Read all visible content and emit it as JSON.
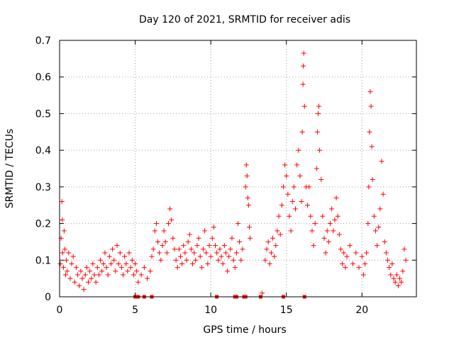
{
  "chart_data": {
    "type": "scatter",
    "title": "Day 120 of 2021, SRMTID for receiver adis",
    "xlabel": "GPS time / hours",
    "ylabel": "SRMTID / TECUs",
    "xlim": [
      0,
      23.6
    ],
    "ylim": [
      0,
      0.7
    ],
    "xticks": [
      0,
      5,
      10,
      15,
      20
    ],
    "xtick_labels": [
      "0",
      "5",
      "10",
      "15",
      "20"
    ],
    "yticks": [
      0,
      0.1,
      0.2,
      0.3,
      0.4,
      0.5,
      0.6,
      0.7
    ],
    "ytick_labels": [
      "0",
      "0.1",
      "0.2",
      "0.3",
      "0.4",
      "0.5",
      "0.6",
      "0.7"
    ],
    "grid": true,
    "marker": "+",
    "color": "#ff0000",
    "series": [
      {
        "name": "SRMTID",
        "points": [
          [
            0.05,
            0.09
          ],
          [
            0.1,
            0.16
          ],
          [
            0.15,
            0.26
          ],
          [
            0.18,
            0.21
          ],
          [
            0.2,
            0.12
          ],
          [
            0.25,
            0.08
          ],
          [
            0.3,
            0.18
          ],
          [
            0.35,
            0.13
          ],
          [
            0.4,
            0.06
          ],
          [
            0.45,
            0.1
          ],
          [
            0.5,
            0.07
          ],
          [
            0.6,
            0.12
          ],
          [
            0.7,
            0.05
          ],
          [
            0.8,
            0.09
          ],
          [
            0.9,
            0.11
          ],
          [
            1.0,
            0.04
          ],
          [
            1.1,
            0.08
          ],
          [
            1.2,
            0.06
          ],
          [
            1.3,
            0.03
          ],
          [
            1.4,
            0.07
          ],
          [
            1.5,
            0.05
          ],
          [
            1.6,
            0.02
          ],
          [
            1.7,
            0.06
          ],
          [
            1.8,
            0.08
          ],
          [
            1.9,
            0.04
          ],
          [
            2.0,
            0.07
          ],
          [
            2.1,
            0.05
          ],
          [
            2.2,
            0.09
          ],
          [
            2.3,
            0.06
          ],
          [
            2.4,
            0.04
          ],
          [
            2.5,
            0.08
          ],
          [
            2.6,
            0.06
          ],
          [
            2.7,
            0.1
          ],
          [
            2.8,
            0.07
          ],
          [
            2.9,
            0.09
          ],
          [
            3.0,
            0.12
          ],
          [
            3.1,
            0.08
          ],
          [
            3.2,
            0.06
          ],
          [
            3.3,
            0.11
          ],
          [
            3.4,
            0.09
          ],
          [
            3.5,
            0.13
          ],
          [
            3.6,
            0.1
          ],
          [
            3.7,
            0.07
          ],
          [
            3.8,
            0.14
          ],
          [
            3.9,
            0.09
          ],
          [
            4.0,
            0.12
          ],
          [
            4.1,
            0.08
          ],
          [
            4.2,
            0.06
          ],
          [
            4.3,
            0.11
          ],
          [
            4.4,
            0.09
          ],
          [
            4.5,
            0.07
          ],
          [
            4.6,
            0.12
          ],
          [
            4.7,
            0.08
          ],
          [
            4.8,
            0.1
          ],
          [
            4.9,
            0.06
          ],
          [
            5.0,
            0.09
          ],
          [
            5.1,
            0.07
          ],
          [
            5.2,
            0.04
          ],
          [
            5.4,
            0.06
          ],
          [
            5.6,
            0.08
          ],
          [
            5.8,
            0.05
          ],
          [
            6.0,
            0.07
          ],
          [
            6.1,
            0.11
          ],
          [
            6.2,
            0.13
          ],
          [
            6.3,
            0.18
          ],
          [
            6.4,
            0.2
          ],
          [
            6.5,
            0.15
          ],
          [
            6.6,
            0.12
          ],
          [
            6.7,
            0.1
          ],
          [
            6.8,
            0.14
          ],
          [
            6.9,
            0.18
          ],
          [
            7.0,
            0.15
          ],
          [
            7.1,
            0.12
          ],
          [
            7.2,
            0.2
          ],
          [
            7.3,
            0.24
          ],
          [
            7.4,
            0.21
          ],
          [
            7.5,
            0.16
          ],
          [
            7.6,
            0.13
          ],
          [
            7.7,
            0.1
          ],
          [
            7.8,
            0.08
          ],
          [
            7.9,
            0.13
          ],
          [
            8.0,
            0.11
          ],
          [
            8.1,
            0.09
          ],
          [
            8.2,
            0.14
          ],
          [
            8.3,
            0.12
          ],
          [
            8.4,
            0.1
          ],
          [
            8.5,
            0.15
          ],
          [
            8.6,
            0.17
          ],
          [
            8.7,
            0.13
          ],
          [
            8.8,
            0.09
          ],
          [
            8.9,
            0.12
          ],
          [
            9.0,
            0.1
          ],
          [
            9.1,
            0.14
          ],
          [
            9.2,
            0.16
          ],
          [
            9.3,
            0.11
          ],
          [
            9.4,
            0.08
          ],
          [
            9.5,
            0.13
          ],
          [
            9.6,
            0.18
          ],
          [
            9.7,
            0.12
          ],
          [
            9.8,
            0.09
          ],
          [
            9.9,
            0.14
          ],
          [
            10.0,
            0.11
          ],
          [
            10.1,
            0.16
          ],
          [
            10.2,
            0.19
          ],
          [
            10.3,
            0.14
          ],
          [
            10.4,
            0.12
          ],
          [
            10.5,
            0.1
          ],
          [
            10.6,
            0.13
          ],
          [
            10.7,
            0.11
          ],
          [
            10.8,
            0.09
          ],
          [
            10.9,
            0.14
          ],
          [
            11.0,
            0.12
          ],
          [
            11.1,
            0.07
          ],
          [
            11.2,
            0.11
          ],
          [
            11.3,
            0.13
          ],
          [
            11.4,
            0.16
          ],
          [
            11.5,
            0.1
          ],
          [
            11.6,
            0.08
          ],
          [
            11.7,
            0.12
          ],
          [
            11.8,
            0.2
          ],
          [
            11.9,
            0.15
          ],
          [
            12.0,
            0.1
          ],
          [
            12.1,
            0.13
          ],
          [
            12.3,
            0.3
          ],
          [
            12.35,
            0.36
          ],
          [
            12.4,
            0.33
          ],
          [
            12.45,
            0.27
          ],
          [
            12.5,
            0.25
          ],
          [
            12.55,
            0.19
          ],
          [
            12.6,
            0.16
          ],
          [
            13.4,
            0.01
          ],
          [
            13.6,
            0.1
          ],
          [
            13.7,
            0.13
          ],
          [
            13.8,
            0.15
          ],
          [
            13.9,
            0.09
          ],
          [
            14.0,
            0.12
          ],
          [
            14.1,
            0.16
          ],
          [
            14.2,
            0.11
          ],
          [
            14.3,
            0.14
          ],
          [
            14.4,
            0.18
          ],
          [
            14.5,
            0.22
          ],
          [
            14.6,
            0.17
          ],
          [
            14.7,
            0.25
          ],
          [
            14.8,
            0.3
          ],
          [
            14.9,
            0.36
          ],
          [
            15.0,
            0.33
          ],
          [
            15.1,
            0.28
          ],
          [
            15.2,
            0.22
          ],
          [
            15.3,
            0.18
          ],
          [
            15.4,
            0.26
          ],
          [
            15.5,
            0.3
          ],
          [
            15.6,
            0.24
          ],
          [
            15.7,
            0.36
          ],
          [
            15.8,
            0.4
          ],
          [
            15.9,
            0.33
          ],
          [
            16.0,
            0.26
          ],
          [
            16.05,
            0.45
          ],
          [
            16.1,
            0.58
          ],
          [
            16.12,
            0.63
          ],
          [
            16.15,
            0.665
          ],
          [
            16.2,
            0.52
          ],
          [
            16.3,
            0.3
          ],
          [
            16.4,
            0.25
          ],
          [
            16.5,
            0.3
          ],
          [
            16.6,
            0.22
          ],
          [
            16.7,
            0.18
          ],
          [
            16.8,
            0.14
          ],
          [
            16.9,
            0.2
          ],
          [
            17.0,
            0.35
          ],
          [
            17.05,
            0.45
          ],
          [
            17.1,
            0.5
          ],
          [
            17.15,
            0.52
          ],
          [
            17.2,
            0.4
          ],
          [
            17.3,
            0.32
          ],
          [
            17.4,
            0.22
          ],
          [
            17.5,
            0.16
          ],
          [
            17.6,
            0.12
          ],
          [
            17.7,
            0.18
          ],
          [
            17.8,
            0.15
          ],
          [
            17.9,
            0.2
          ],
          [
            18.0,
            0.24
          ],
          [
            18.1,
            0.18
          ],
          [
            18.2,
            0.21
          ],
          [
            18.3,
            0.27
          ],
          [
            18.4,
            0.22
          ],
          [
            18.5,
            0.17
          ],
          [
            18.6,
            0.13
          ],
          [
            18.7,
            0.09
          ],
          [
            18.8,
            0.12
          ],
          [
            18.9,
            0.08
          ],
          [
            19.0,
            0.11
          ],
          [
            19.2,
            0.14
          ],
          [
            19.4,
            0.09
          ],
          [
            19.6,
            0.12
          ],
          [
            19.8,
            0.08
          ],
          [
            20.0,
            0.11
          ],
          [
            20.1,
            0.06
          ],
          [
            20.2,
            0.09
          ],
          [
            20.3,
            0.12
          ],
          [
            20.4,
            0.2
          ],
          [
            20.45,
            0.3
          ],
          [
            20.5,
            0.45
          ],
          [
            20.55,
            0.56
          ],
          [
            20.6,
            0.52
          ],
          [
            20.65,
            0.41
          ],
          [
            20.7,
            0.32
          ],
          [
            20.8,
            0.22
          ],
          [
            20.9,
            0.18
          ],
          [
            21.0,
            0.14
          ],
          [
            21.1,
            0.19
          ],
          [
            21.2,
            0.24
          ],
          [
            21.3,
            0.37
          ],
          [
            21.4,
            0.28
          ],
          [
            21.5,
            0.15
          ],
          [
            21.6,
            0.12
          ],
          [
            21.7,
            0.1
          ],
          [
            21.8,
            0.08
          ],
          [
            21.9,
            0.06
          ],
          [
            22.0,
            0.09
          ],
          [
            22.1,
            0.05
          ],
          [
            22.2,
            0.04
          ],
          [
            22.3,
            0.06
          ],
          [
            22.4,
            0.03
          ],
          [
            22.5,
            0.05
          ],
          [
            22.6,
            0.04
          ],
          [
            22.7,
            0.07
          ],
          [
            22.8,
            0.13
          ],
          [
            22.9,
            0.1
          ]
        ]
      }
    ],
    "zero_markers_x": [
      5.0,
      5.2,
      5.6,
      6.1,
      10.4,
      11.6,
      11.7,
      12.2,
      12.3,
      13.3,
      14.8,
      16.2
    ]
  }
}
